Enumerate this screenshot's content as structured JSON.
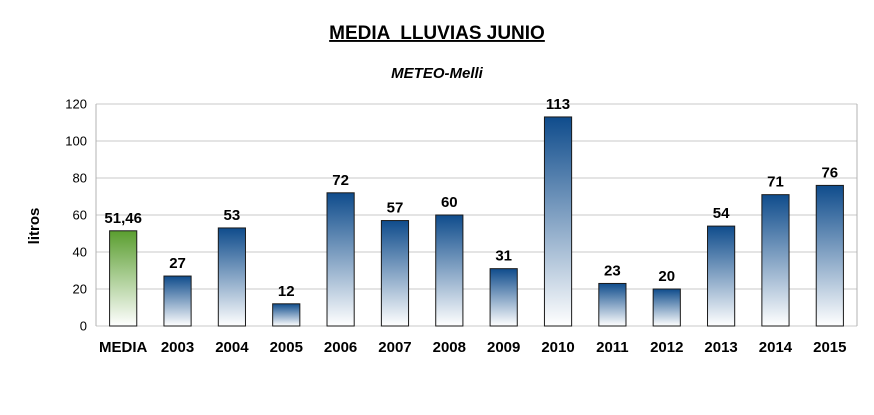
{
  "chart_data": {
    "type": "bar",
    "title": "MEDIA  LLUVIAS JUNIO",
    "subtitle": "METEO-Melli",
    "ylabel": "litros",
    "xlabel": "",
    "ylim": [
      0,
      120
    ],
    "yticks": [
      0,
      20,
      40,
      60,
      80,
      100,
      120
    ],
    "grid": true,
    "legend": "none",
    "categories": [
      "MEDIA",
      "2003",
      "2004",
      "2005",
      "2006",
      "2007",
      "2008",
      "2009",
      "2010",
      "2011",
      "2012",
      "2013",
      "2014",
      "2015"
    ],
    "values": [
      51.46,
      27,
      53,
      12,
      72,
      57,
      60,
      31,
      113,
      23,
      20,
      54,
      71,
      76
    ],
    "data_labels": [
      "51,46",
      "27",
      "53",
      "12",
      "72",
      "57",
      "60",
      "31",
      "113",
      "23",
      "20",
      "54",
      "71",
      "76"
    ],
    "colors": {
      "media_top": "#5a9e2f",
      "media_bottom": "#ffffff",
      "bar_top": "#0f4c8c",
      "bar_bottom": "#ffffff"
    }
  }
}
